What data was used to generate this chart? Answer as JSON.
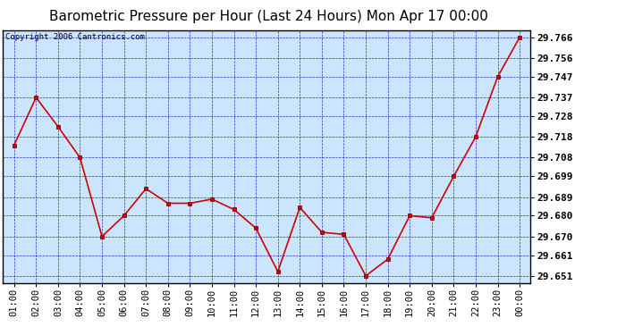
{
  "title": "Barometric Pressure per Hour (Last 24 Hours) Mon Apr 17 00:00",
  "copyright": "Copyright 2006 Cantronics.com",
  "x_labels": [
    "01:00",
    "02:00",
    "03:00",
    "04:00",
    "05:00",
    "06:00",
    "07:00",
    "08:00",
    "09:00",
    "10:00",
    "11:00",
    "12:00",
    "13:00",
    "14:00",
    "15:00",
    "16:00",
    "17:00",
    "18:00",
    "19:00",
    "20:00",
    "21:00",
    "22:00",
    "23:00",
    "00:00"
  ],
  "y_values": [
    29.714,
    29.737,
    29.723,
    29.708,
    29.67,
    29.68,
    29.693,
    29.686,
    29.686,
    29.688,
    29.683,
    29.674,
    29.653,
    29.684,
    29.672,
    29.671,
    29.651,
    29.659,
    29.68,
    29.679,
    29.699,
    29.718,
    29.747,
    29.766
  ],
  "ylim_min": 29.6475,
  "ylim_max": 29.7695,
  "y_ticks": [
    29.651,
    29.661,
    29.67,
    29.68,
    29.689,
    29.699,
    29.708,
    29.718,
    29.728,
    29.737,
    29.747,
    29.756,
    29.766
  ],
  "line_color": "#cc0000",
  "marker_color": "#cc0000",
  "bg_color": "#cce5ff",
  "grid_color": "#0000cc",
  "border_color": "#000000",
  "title_fontsize": 11,
  "copyright_fontsize": 6.5,
  "tick_fontsize": 7.5,
  "ytick_fontsize": 8
}
